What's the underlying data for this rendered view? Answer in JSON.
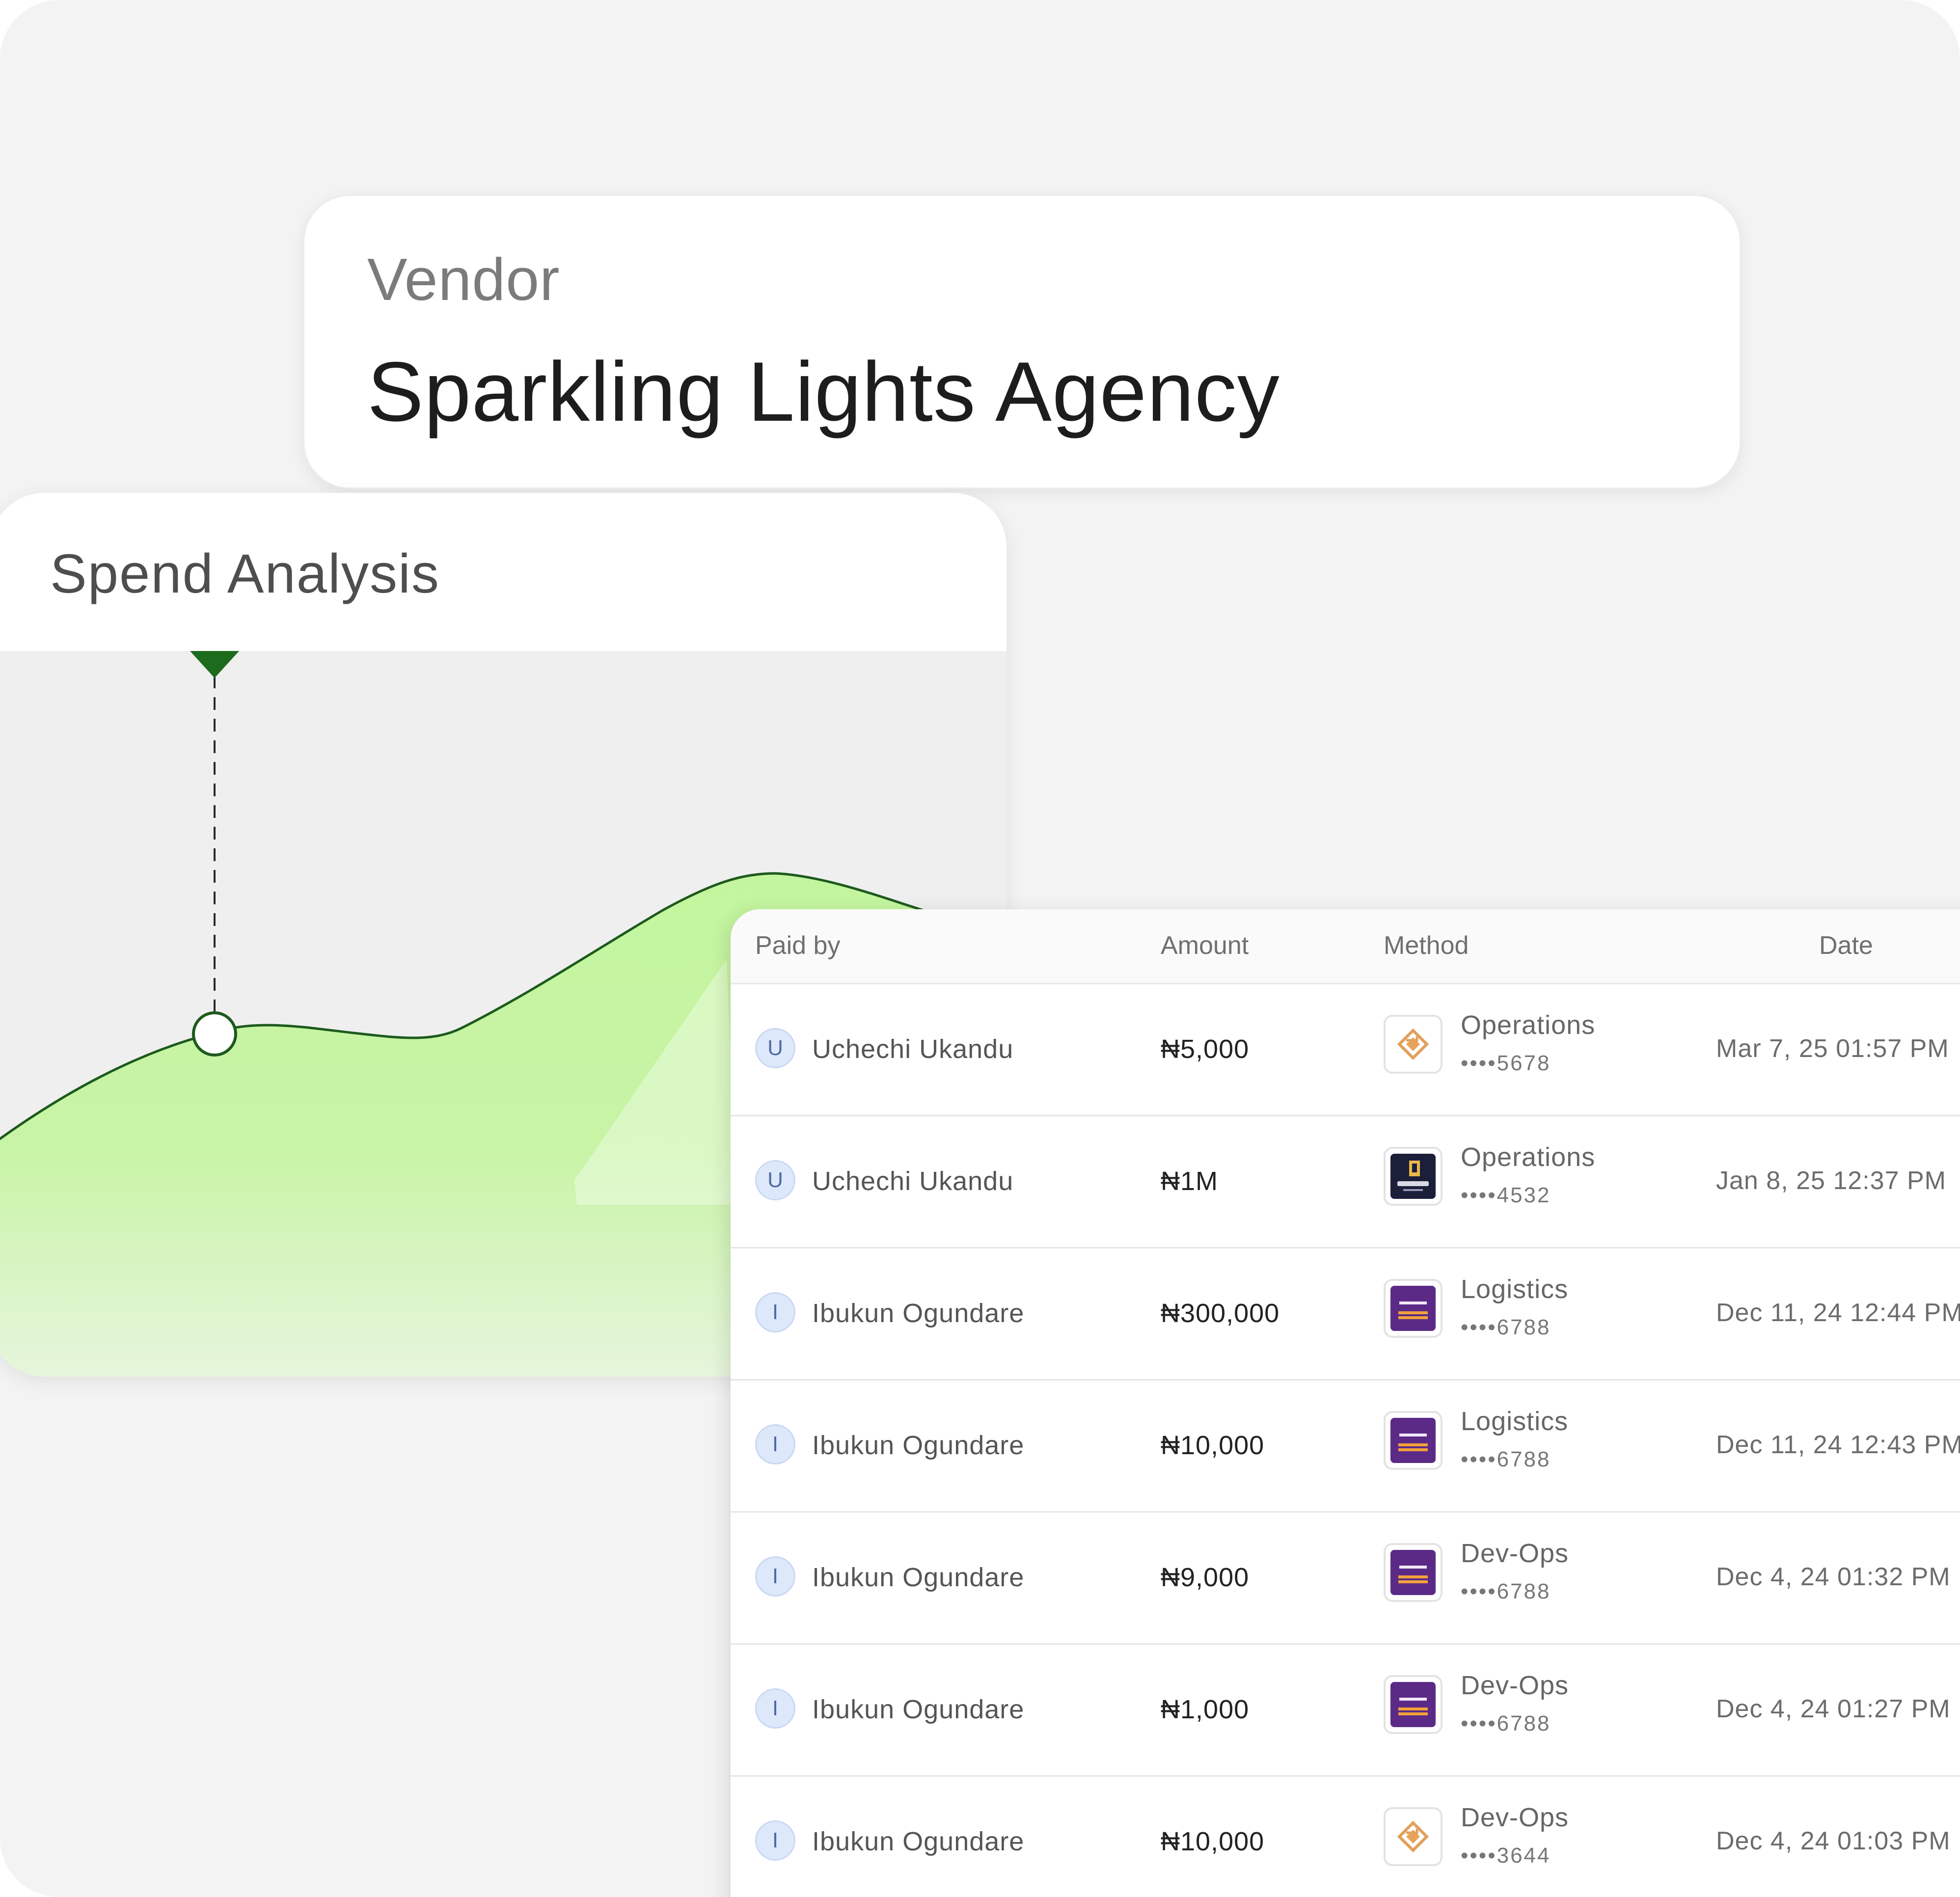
{
  "vendor": {
    "label": "Vendor",
    "name": "Sparkling Lights Agency"
  },
  "spend_analysis": {
    "title": "Spend Analysis",
    "colors": {
      "line": "#1d5a1d",
      "fill_top": "#c3f59e",
      "fill_bottom": "#e6f5dc",
      "marker": "#1d6b1d"
    }
  },
  "table": {
    "headers": {
      "paid_by": "Paid by",
      "amount": "Amount",
      "method": "Method",
      "date": "Date"
    },
    "rows": [
      {
        "initial": "U",
        "paid_by": "Uchechi Ukandu",
        "amount": "₦5,000",
        "bank_icon": "operations-diamond-icon",
        "method": "Operations",
        "digits": "••••5678",
        "date": "Mar 7, 25 01:57 PM"
      },
      {
        "initial": "U",
        "paid_by": "Uchechi Ukandu",
        "amount": "₦1M",
        "bank_icon": "firstbank-icon",
        "method": "Operations",
        "digits": "••••4532",
        "date": "Jan 8, 25 12:37 PM"
      },
      {
        "initial": "I",
        "paid_by": "Ibukun Ogundare",
        "amount": "₦300,000",
        "bank_icon": "fcmb-icon",
        "method": "Logistics",
        "digits": "••••6788",
        "date": "Dec 11, 24 12:44 PM"
      },
      {
        "initial": "I",
        "paid_by": "Ibukun Ogundare",
        "amount": "₦10,000",
        "bank_icon": "fcmb-icon",
        "method": "Logistics",
        "digits": "••••6788",
        "date": "Dec 11, 24 12:43 PM"
      },
      {
        "initial": "I",
        "paid_by": "Ibukun Ogundare",
        "amount": "₦9,000",
        "bank_icon": "fcmb-icon",
        "method": "Dev-Ops",
        "digits": "••••6788",
        "date": "Dec 4, 24 01:32 PM"
      },
      {
        "initial": "I",
        "paid_by": "Ibukun Ogundare",
        "amount": "₦1,000",
        "bank_icon": "fcmb-icon",
        "method": "Dev-Ops",
        "digits": "••••6788",
        "date": "Dec 4, 24 01:27 PM"
      },
      {
        "initial": "I",
        "paid_by": "Ibukun Ogundare",
        "amount": "₦10,000",
        "bank_icon": "operations-diamond-icon",
        "method": "Dev-Ops",
        "digits": "••••3644",
        "date": "Dec 4, 24 01:03 PM"
      }
    ]
  }
}
